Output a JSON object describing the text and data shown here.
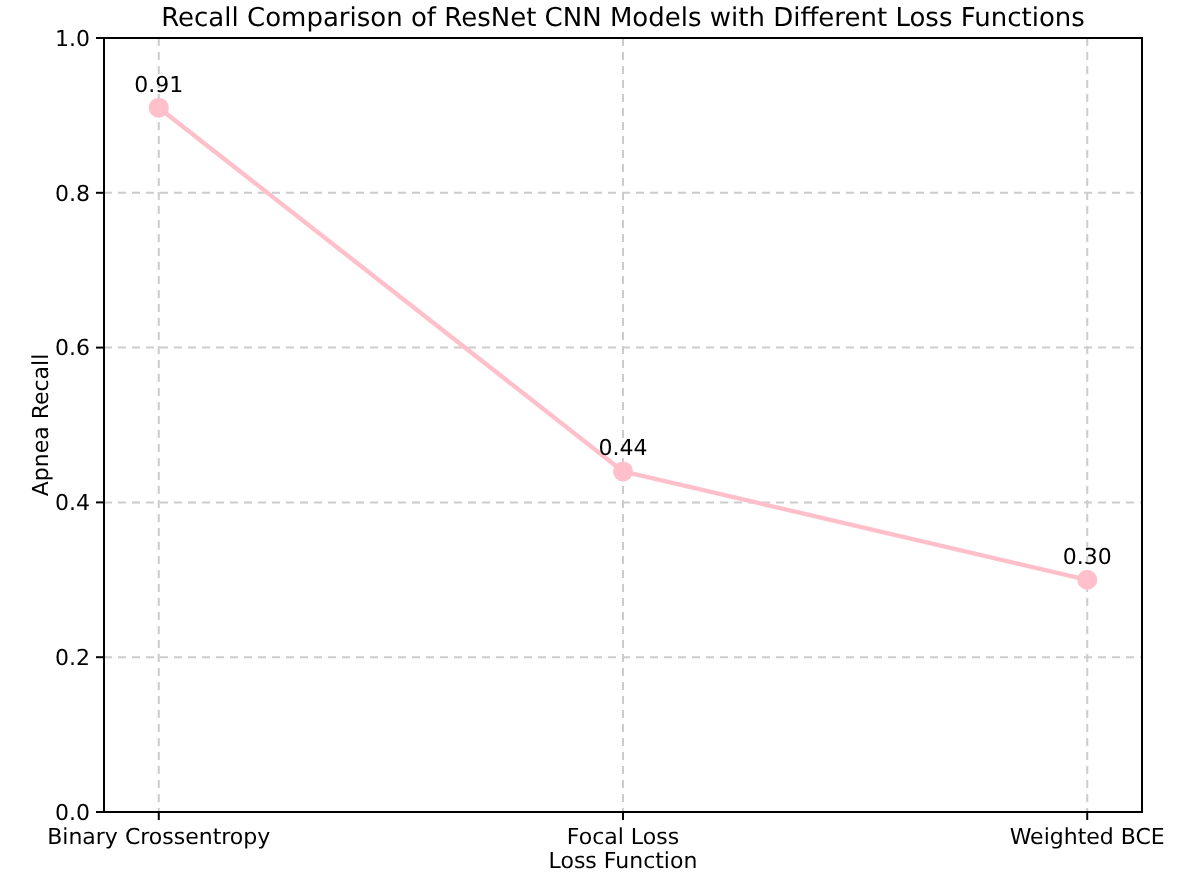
{
  "chart_data": {
    "type": "line",
    "title": "Recall Comparison of ResNet CNN Models with Different Loss Functions",
    "xlabel": "Loss Function",
    "ylabel": "Apnea Recall",
    "categories": [
      "Binary Crossentropy",
      "Focal Loss",
      "Weighted BCE"
    ],
    "series": [
      {
        "color": "#ffc0cb",
        "values": [
          0.91,
          0.44,
          0.3
        ],
        "value_labels": [
          "0.91",
          "0.44",
          "0.30"
        ]
      }
    ],
    "ylim": [
      0,
      1
    ],
    "yticks": [
      {
        "value": 0,
        "label": "0.0"
      },
      {
        "value": 0.2,
        "label": "0.2"
      },
      {
        "value": 0.4,
        "label": "0.4"
      },
      {
        "value": 0.6,
        "label": "0.6"
      },
      {
        "value": 0.8,
        "label": "0.8"
      },
      {
        "value": 1,
        "label": "1.0"
      }
    ],
    "grid": true,
    "marker": "circle",
    "line_style": "solid"
  }
}
